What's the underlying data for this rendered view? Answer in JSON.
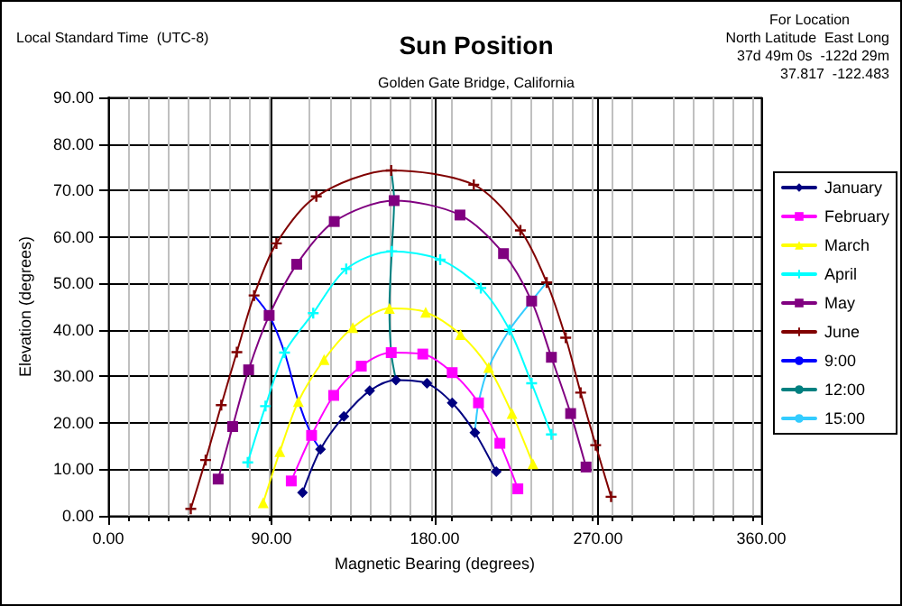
{
  "chart_data": {
    "type": "line",
    "title": "Sun Position",
    "subtitle": "Golden Gate Bridge, California",
    "xlabel": "Magnetic Bearing (degrees)",
    "ylabel": "Elevation (degrees)",
    "annotations": [
      "Local Standard Time  (UTC-8)",
      "For Location",
      "North Latitude  East Long",
      "37d 49m 0s  -122d 29m",
      "37.817  -122.483"
    ],
    "xlim": [
      0,
      360
    ],
    "ylim": [
      0,
      90
    ],
    "xticks": [
      {
        "value": 0,
        "label": "0.00"
      },
      {
        "value": 90,
        "label": "90.00"
      },
      {
        "value": 180,
        "label": "180.00"
      },
      {
        "value": 270,
        "label": "270.00"
      },
      {
        "value": 360,
        "label": "360.00"
      }
    ],
    "yticks": [
      {
        "value": 0,
        "label": "0.00"
      },
      {
        "value": 10,
        "label": "10.00"
      },
      {
        "value": 20,
        "label": "20.00"
      },
      {
        "value": 30,
        "label": "30.00"
      },
      {
        "value": 40,
        "label": "40.00"
      },
      {
        "value": 50,
        "label": "50.00"
      },
      {
        "value": 60,
        "label": "60.00"
      },
      {
        "value": 70,
        "label": "70.00"
      },
      {
        "value": 80,
        "label": "80.00"
      },
      {
        "value": 90,
        "label": "90.00"
      }
    ],
    "grid": true,
    "legend": "right",
    "line_style": "solid",
    "series": [
      {
        "name": "January",
        "color": "#000080",
        "marker": "diamond",
        "x": [
          107.1,
          117,
          129.9,
          144.1,
          158.6,
          175.7,
          189.6,
          202.1,
          213.9
        ],
        "values": [
          5.0,
          14.3,
          21.4,
          26.9,
          29.2,
          28.5,
          24.3,
          17.9,
          9.5
        ]
      },
      {
        "name": "February",
        "color": "#ff00ff",
        "marker": "square",
        "x": [
          100.9,
          112.1,
          124.3,
          139.5,
          156,
          173.4,
          189.6,
          204.1,
          215.9,
          225.8
        ],
        "values": [
          7.5,
          17.3,
          25.9,
          32.2,
          35.1,
          34.8,
          30.8,
          24.3,
          15.6,
          5.8
        ]
      },
      {
        "name": "March",
        "color": "#ffff00",
        "marker": "triangle",
        "x": [
          85.4,
          94.6,
          104.8,
          119,
          134.8,
          155,
          175,
          194.2,
          209.7,
          222.6,
          234.1
        ],
        "values": [
          2.8,
          13.8,
          24.6,
          33.6,
          40.5,
          44.6,
          43.8,
          39.0,
          31.9,
          22.0,
          11.2
        ]
      },
      {
        "name": "April",
        "color": "#00ffff",
        "marker": "cross",
        "x": [
          76.9,
          86.7,
          97.2,
          113,
          131.2,
          156.3,
          183,
          205.4,
          221.2,
          233.4,
          244.3
        ],
        "values": [
          11.5,
          23.6,
          35.1,
          43.6,
          53.1,
          56.9,
          55.1,
          49.0,
          40.0,
          28.5,
          17.5
        ]
      },
      {
        "name": "May",
        "color": "#800080",
        "marker": "square",
        "x": [
          60.6,
          68.6,
          77.4,
          88.7,
          103.9,
          124.6,
          157.6,
          193.9,
          217.9,
          233.4,
          244.3,
          254.9,
          263.4
        ],
        "values": [
          7.9,
          19.2,
          31.4,
          43.1,
          54.1,
          63.3,
          67.8,
          64.7,
          56.4,
          46.2,
          34.1,
          22.0,
          10.5
        ]
      },
      {
        "name": "June",
        "color": "#800000",
        "marker": "cross",
        "x": [
          45.5,
          53.7,
          62.3,
          70.9,
          80.4,
          92.7,
          114.7,
          156,
          201.5,
          227.2,
          241.7,
          252.2,
          260.4,
          268.7,
          277.2
        ],
        "values": [
          1.5,
          12.0,
          23.8,
          35.2,
          47.4,
          58.6,
          68.7,
          74.3,
          71.2,
          61.4,
          50.2,
          38.3,
          26.5,
          15.2,
          4.1
        ]
      },
      {
        "name": "9:00",
        "color": "#0000ff",
        "marker": "none",
        "x": [
          80.4,
          88.7,
          97.2,
          104.8,
          112.1,
          117
        ],
        "values": [
          47.4,
          43.1,
          35.1,
          24.6,
          17.3,
          14.3
        ]
      },
      {
        "name": "12:00",
        "color": "#008080",
        "marker": "none",
        "x": [
          156,
          157.6,
          156.3,
          155,
          156,
          158.6
        ],
        "values": [
          74.3,
          67.8,
          56.9,
          44.6,
          35.1,
          29.2
        ]
      },
      {
        "name": "15:00",
        "color": "#33ccff",
        "marker": "none",
        "x": [
          241.7,
          233.4,
          221.2,
          209.7,
          204.1,
          202.1
        ],
        "values": [
          50.2,
          46.2,
          40.0,
          31.9,
          24.3,
          17.9
        ]
      }
    ]
  }
}
